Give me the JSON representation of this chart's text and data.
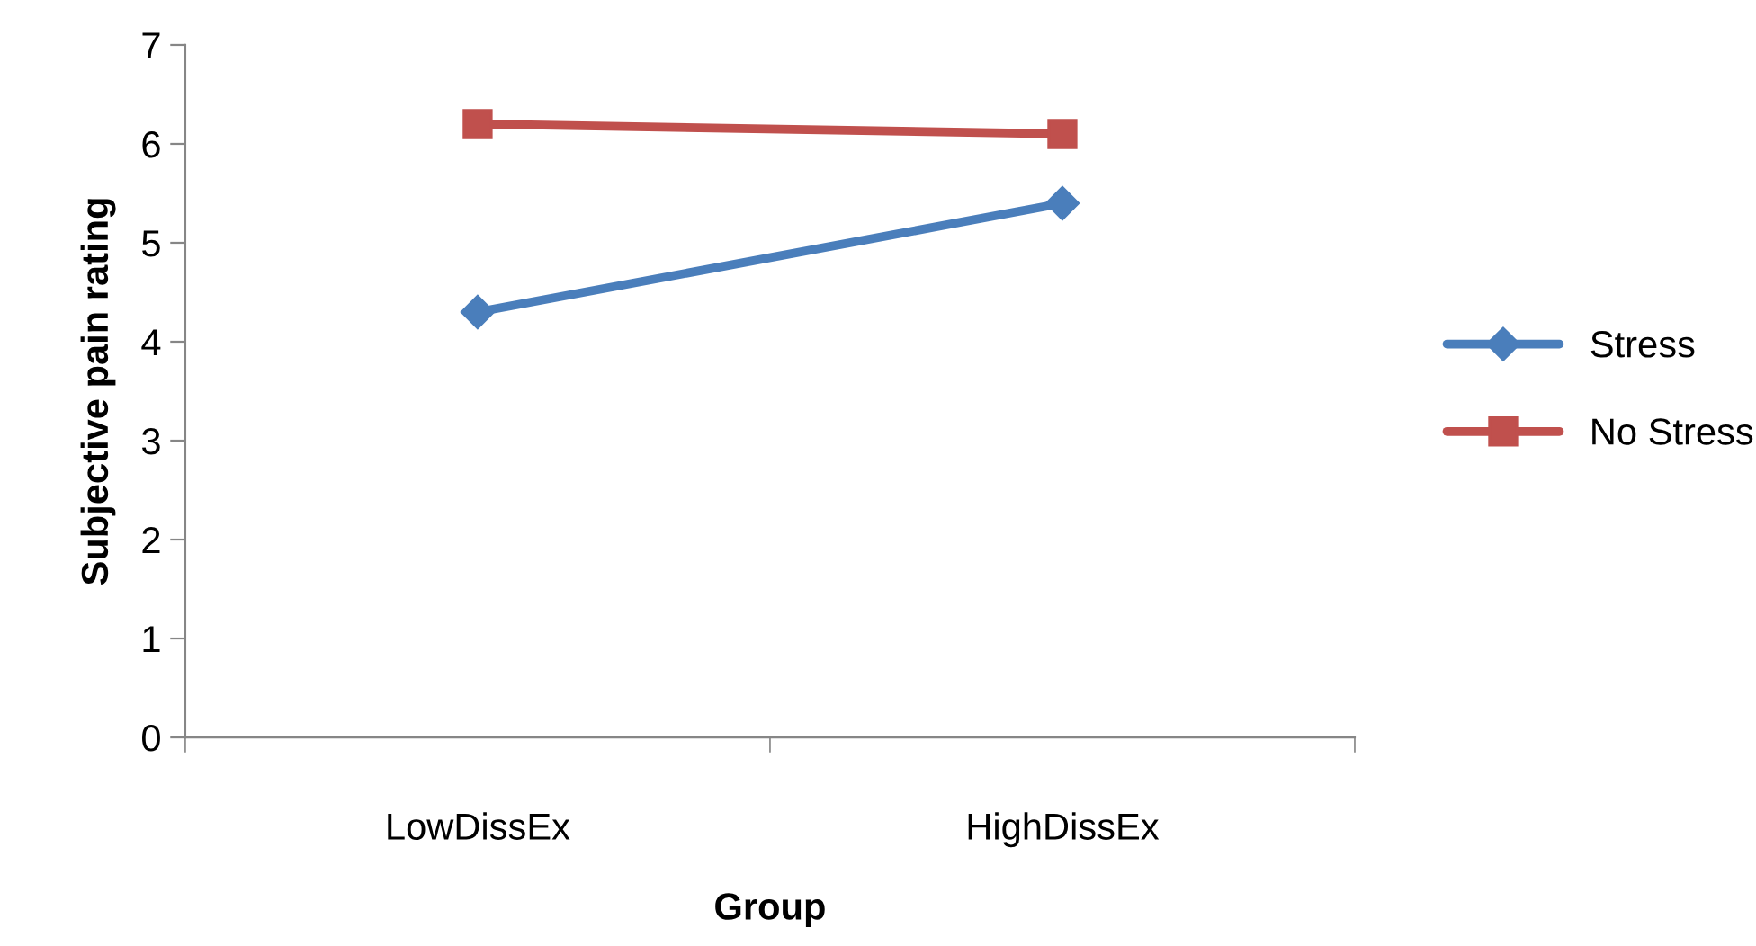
{
  "chart_data": {
    "type": "line",
    "xlabel": "Group",
    "ylabel": "Subjective pain rating",
    "categories": [
      "LowDissEx",
      "HighDissEx"
    ],
    "series": [
      {
        "name": "Stress",
        "color": "#4a7ebb",
        "marker": "diamond",
        "values": [
          4.3,
          5.4
        ]
      },
      {
        "name": "No Stress",
        "color": "#c0504d",
        "marker": "square",
        "values": [
          6.2,
          6.1
        ]
      }
    ],
    "ylim": [
      0,
      7
    ],
    "yticks": [
      0,
      1,
      2,
      3,
      4,
      5,
      6,
      7
    ],
    "legend": "right",
    "line_style": "solid"
  }
}
